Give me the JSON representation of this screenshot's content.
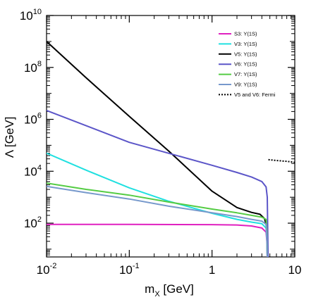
{
  "chart_data": {
    "type": "line",
    "xlabel": "m_X [GeV]",
    "xlabel_main": "m",
    "xlabel_sub": "X",
    "xlabel_unit": " [GeV]",
    "ylabel": "Λ [GeV]",
    "x_scale": "log",
    "y_scale": "log",
    "xlim": [
      0.01,
      10
    ],
    "ylim": [
      5,
      10000000000
    ],
    "x_ticks": [
      {
        "value": 0.01,
        "base": "10",
        "exp": "-2"
      },
      {
        "value": 0.1,
        "base": "10",
        "exp": "-1"
      },
      {
        "value": 1,
        "base": "1",
        "exp": ""
      },
      {
        "value": 10,
        "base": "10",
        "exp": ""
      }
    ],
    "y_ticks": [
      {
        "value": 100,
        "base": "10",
        "exp": "2"
      },
      {
        "value": 10000,
        "base": "10",
        "exp": "4"
      },
      {
        "value": 1000000,
        "base": "10",
        "exp": "6"
      },
      {
        "value": 100000000,
        "base": "10",
        "exp": "8"
      },
      {
        "value": 10000000000,
        "base": "10",
        "exp": "10"
      }
    ],
    "grid": false,
    "legend_position": "top-right",
    "series": [
      {
        "name": "S3: Υ(1S)",
        "color": "#e020c0",
        "dash": "solid",
        "x": [
          0.01,
          0.1,
          1,
          2,
          3,
          4,
          4.5,
          4.6,
          4.65
        ],
        "y": [
          90,
          90,
          88,
          85,
          78,
          65,
          45,
          20,
          5
        ]
      },
      {
        "name": "V3: Υ(1S)",
        "color": "#20e0e0",
        "dash": "solid",
        "x": [
          0.01,
          0.03,
          0.1,
          0.3,
          1,
          2,
          3,
          4,
          4.5,
          4.6,
          4.65
        ],
        "y": [
          50000,
          11000,
          2300,
          700,
          240,
          140,
          110,
          95,
          65,
          25,
          5
        ]
      },
      {
        "name": "V5: Υ(1S)",
        "color": "#000000",
        "dash": "solid",
        "x": [
          0.01,
          0.03,
          0.1,
          0.3,
          1,
          2,
          3,
          3.8,
          4.3,
          4.5,
          4.6,
          4.65,
          4.7
        ],
        "y": [
          1000000000,
          40000000,
          1300000,
          60000,
          1700,
          400,
          260,
          220,
          150,
          90,
          40,
          15,
          5
        ]
      },
      {
        "name": "V6: Υ(1S)",
        "color": "#5b55c8",
        "dash": "solid",
        "x": [
          0.01,
          0.1,
          1,
          2,
          3,
          4,
          4.5,
          4.65,
          4.7,
          4.75
        ],
        "y": [
          2200000,
          130000,
          17000,
          9000,
          6000,
          4000,
          2500,
          1000,
          100,
          5
        ]
      },
      {
        "name": "V7: Υ(1S)",
        "color": "#55cc44",
        "dash": "solid",
        "x": [
          0.01,
          0.03,
          0.1,
          0.3,
          1,
          2,
          3,
          4,
          4.5,
          4.6,
          4.65
        ],
        "y": [
          3500,
          2000,
          1200,
          650,
          350,
          250,
          200,
          170,
          140,
          50,
          5
        ]
      },
      {
        "name": "V9: Υ(1S)",
        "color": "#7799cc",
        "dash": "solid",
        "x": [
          0.01,
          0.03,
          0.1,
          0.3,
          1,
          2,
          3,
          4,
          4.5,
          4.6,
          4.65
        ],
        "y": [
          2600,
          1500,
          850,
          450,
          250,
          180,
          140,
          120,
          90,
          30,
          5
        ]
      },
      {
        "name": "V5 and V6: Fermi",
        "color": "#000000",
        "dash": "dotted",
        "x": [
          4.8,
          6,
          8,
          10
        ],
        "y": [
          28000,
          26000,
          24000,
          22000
        ]
      }
    ]
  }
}
